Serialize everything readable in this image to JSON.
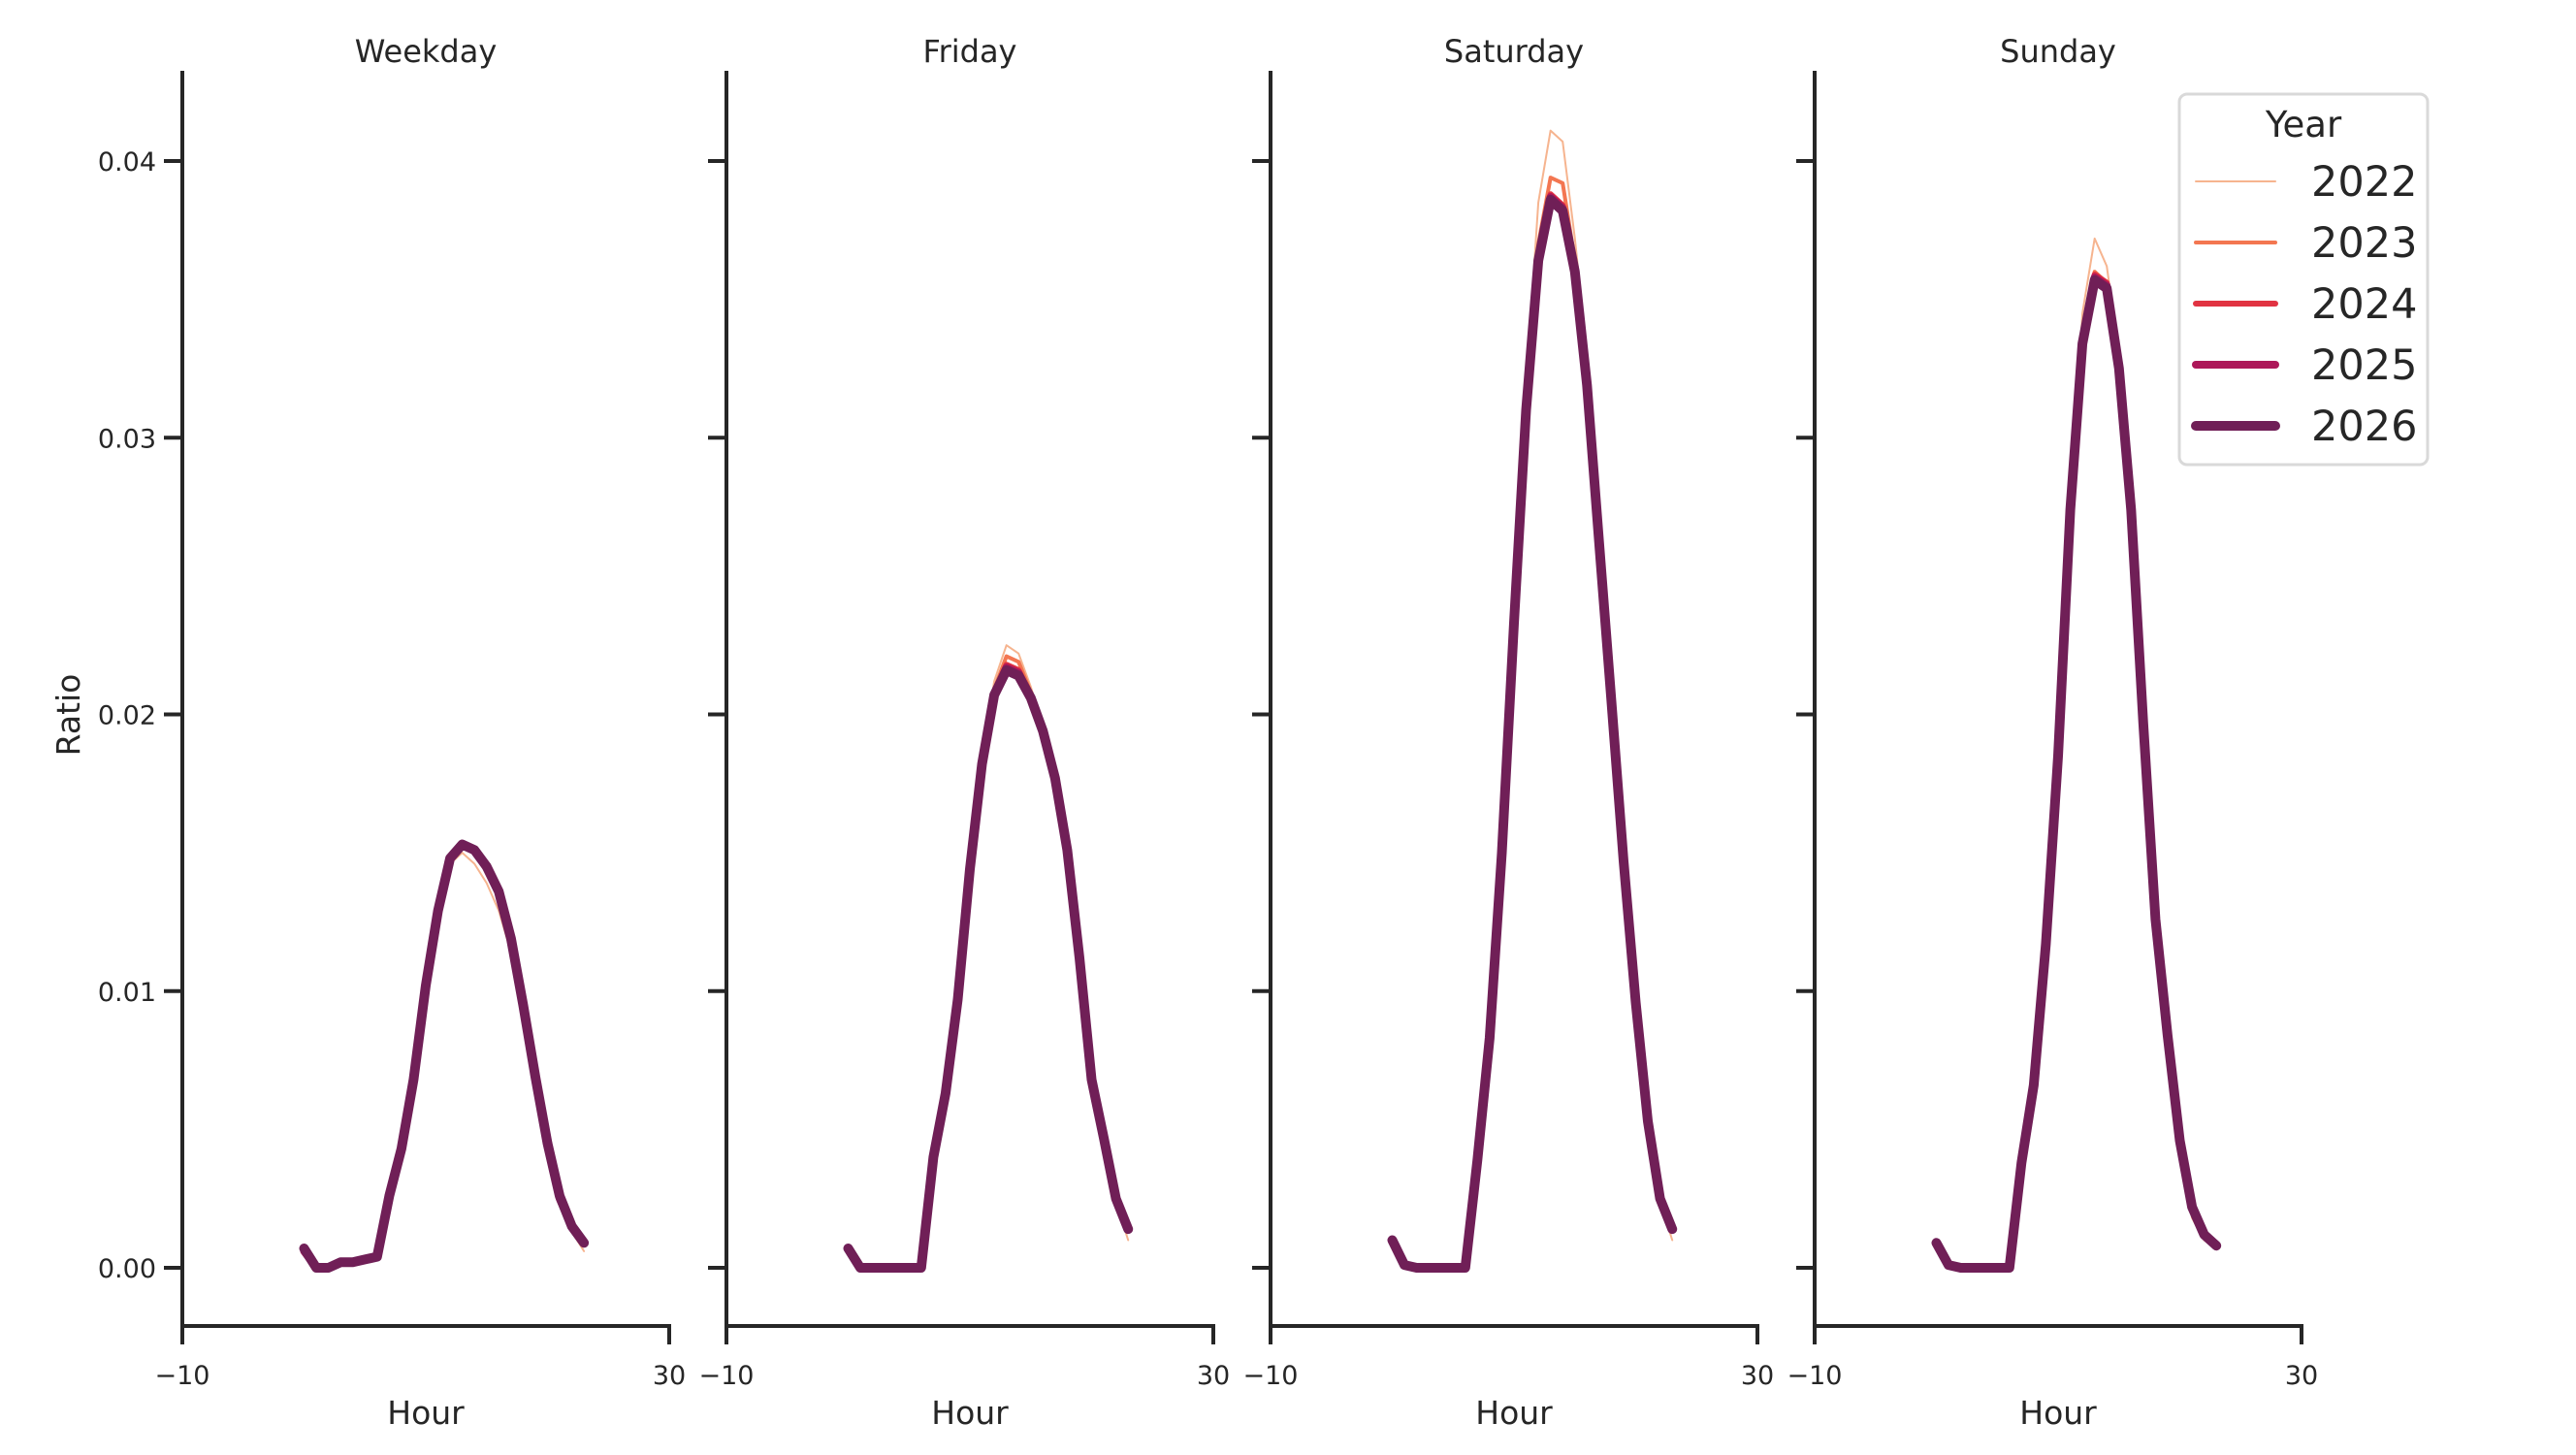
{
  "chart_data": {
    "type": "line",
    "layout": "facet-columns",
    "ylabel": "Ratio",
    "xlabel": "Hour",
    "xlim": [
      -10,
      30
    ],
    "ylim": [
      -0.002,
      0.0432
    ],
    "xticks": [
      -10,
      30
    ],
    "xtick_labels": [
      "−10",
      "30"
    ],
    "yticks": [
      0.0,
      0.01,
      0.02,
      0.03,
      0.04
    ],
    "ytick_labels": [
      "0.00",
      "0.01",
      "0.02",
      "0.03",
      "0.04"
    ],
    "grid": false,
    "legend": {
      "title": "Year",
      "position": "upper right (inside last panel)",
      "entries": [
        {
          "label": "2022",
          "color": "#f6b48f",
          "width": 2
        },
        {
          "label": "2023",
          "color": "#f37651",
          "width": 4
        },
        {
          "label": "2024",
          "color": "#e13342",
          "width": 6
        },
        {
          "label": "2025",
          "color": "#ad1759",
          "width": 8
        },
        {
          "label": "2026",
          "color": "#701f57",
          "width": 10
        }
      ]
    },
    "x": [
      0,
      1,
      2,
      3,
      4,
      5,
      6,
      7,
      8,
      9,
      10,
      11,
      12,
      13,
      14,
      15,
      16,
      17,
      18,
      19,
      20,
      21,
      22,
      23
    ],
    "panels": [
      {
        "title": "Weekday",
        "series": [
          {
            "name": "2022",
            "values": [
              0.0006,
              0,
              0,
              0.0002,
              0.0002,
              0.0003,
              0.0004,
              0.0022,
              0.004,
              0.0067,
              0.0101,
              0.0128,
              0.0146,
              0.015,
              0.0146,
              0.0139,
              0.0129,
              0.0114,
              0.0092,
              0.0068,
              0.0044,
              0.0025,
              0.0013,
              0.0006
            ]
          },
          {
            "name": "2023",
            "values": [
              0.0006,
              0,
              0,
              0.0002,
              0.0002,
              0.0003,
              0.0004,
              0.0025,
              0.0042,
              0.0068,
              0.0102,
              0.0128,
              0.0147,
              0.0152,
              0.015,
              0.0143,
              0.0134,
              0.0118,
              0.0094,
              0.0069,
              0.0044,
              0.0025,
              0.0015,
              0.0008
            ]
          },
          {
            "name": "2024",
            "values": [
              0.0006,
              0,
              0,
              0.0002,
              0.0002,
              0.0003,
              0.0004,
              0.0026,
              0.0043,
              0.0068,
              0.0102,
              0.0129,
              0.0148,
              0.0153,
              0.0151,
              0.0145,
              0.0136,
              0.0119,
              0.0095,
              0.0069,
              0.0044,
              0.0025,
              0.0015,
              0.0009
            ]
          },
          {
            "name": "2025",
            "values": [
              0.0006,
              0,
              0,
              0.0002,
              0.0002,
              0.0003,
              0.0004,
              0.0026,
              0.0043,
              0.0068,
              0.0102,
              0.0129,
              0.0148,
              0.0153,
              0.0151,
              0.0145,
              0.0136,
              0.0119,
              0.0095,
              0.0069,
              0.0044,
              0.0025,
              0.0015,
              0.0009
            ]
          },
          {
            "name": "2026",
            "values": [
              0.0007,
              0,
              0,
              0.0002,
              0.0002,
              0.0003,
              0.0004,
              0.0026,
              0.0043,
              0.0068,
              0.0102,
              0.0129,
              0.0148,
              0.0153,
              0.0151,
              0.0145,
              0.0136,
              0.0119,
              0.0095,
              0.0069,
              0.0045,
              0.0026,
              0.0015,
              0.0009
            ]
          }
        ]
      },
      {
        "title": "Friday",
        "series": [
          {
            "name": "2022",
            "values": [
              0.0007,
              0,
              0,
              0,
              0,
              0,
              0,
              0.0038,
              0.0062,
              0.0097,
              0.0144,
              0.0183,
              0.0212,
              0.0225,
              0.0222,
              0.021,
              0.0196,
              0.0178,
              0.0151,
              0.0112,
              0.0068,
              0.0047,
              0.0024,
              0.001
            ]
          },
          {
            "name": "2023",
            "values": [
              0.0007,
              0,
              0,
              0,
              0,
              0,
              0,
              0.0039,
              0.0062,
              0.0097,
              0.0144,
              0.0182,
              0.0209,
              0.0221,
              0.0219,
              0.0208,
              0.0195,
              0.0177,
              0.0151,
              0.0112,
              0.0068,
              0.0047,
              0.0025,
              0.0013
            ]
          },
          {
            "name": "2024",
            "values": [
              0.0007,
              0,
              0,
              0,
              0,
              0,
              0,
              0.004,
              0.0063,
              0.0097,
              0.0144,
              0.0182,
              0.0208,
              0.0218,
              0.0216,
              0.0207,
              0.0194,
              0.0177,
              0.0151,
              0.0112,
              0.0068,
              0.0047,
              0.0025,
              0.0014
            ]
          },
          {
            "name": "2025",
            "values": [
              0.0007,
              0,
              0,
              0,
              0,
              0,
              0,
              0.004,
              0.0063,
              0.0097,
              0.0144,
              0.0182,
              0.0207,
              0.0217,
              0.0215,
              0.0206,
              0.0194,
              0.0177,
              0.0151,
              0.0112,
              0.0068,
              0.0047,
              0.0025,
              0.0014
            ]
          },
          {
            "name": "2026",
            "values": [
              0.0007,
              0,
              0,
              0,
              0,
              0,
              0,
              0.004,
              0.0063,
              0.0097,
              0.0144,
              0.0182,
              0.0207,
              0.0216,
              0.0214,
              0.0206,
              0.0194,
              0.0177,
              0.0151,
              0.0112,
              0.0068,
              0.0047,
              0.0025,
              0.0014
            ]
          }
        ]
      },
      {
        "title": "Saturday",
        "series": [
          {
            "name": "2022",
            "values": [
              0.001,
              0.0001,
              0,
              0,
              0,
              0,
              0,
              0.0038,
              0.0082,
              0.0149,
              0.0233,
              0.0318,
              0.0385,
              0.0411,
              0.0407,
              0.0372,
              0.033,
              0.027,
              0.021,
              0.015,
              0.0096,
              0.0052,
              0.0024,
              0.001
            ]
          },
          {
            "name": "2023",
            "values": [
              0.001,
              0.0001,
              0,
              0,
              0,
              0,
              0,
              0.0039,
              0.0083,
              0.015,
              0.0233,
              0.0312,
              0.037,
              0.0394,
              0.0392,
              0.0364,
              0.0322,
              0.0265,
              0.0206,
              0.0148,
              0.0096,
              0.0053,
              0.0025,
              0.0013
            ]
          },
          {
            "name": "2024",
            "values": [
              0.001,
              0.0001,
              0,
              0,
              0,
              0,
              0,
              0.0039,
              0.0083,
              0.015,
              0.0233,
              0.0311,
              0.0366,
              0.0388,
              0.0384,
              0.0361,
              0.0319,
              0.0263,
              0.0205,
              0.0147,
              0.0096,
              0.0053,
              0.0025,
              0.0014
            ]
          },
          {
            "name": "2025",
            "values": [
              0.001,
              0.0001,
              0,
              0,
              0,
              0,
              0,
              0.0039,
              0.0083,
              0.015,
              0.0233,
              0.031,
              0.0365,
              0.0387,
              0.0383,
              0.036,
              0.0319,
              0.0262,
              0.0205,
              0.0147,
              0.0096,
              0.0053,
              0.0025,
              0.0014
            ]
          },
          {
            "name": "2026",
            "values": [
              0.001,
              0.0001,
              0,
              0,
              0,
              0,
              0,
              0.0039,
              0.0083,
              0.015,
              0.0233,
              0.031,
              0.0364,
              0.0386,
              0.0382,
              0.036,
              0.0319,
              0.0262,
              0.0205,
              0.0147,
              0.0096,
              0.0053,
              0.0025,
              0.0014
            ]
          }
        ]
      },
      {
        "title": "Sunday",
        "series": [
          {
            "name": "2022",
            "values": [
              0.0009,
              0.0001,
              0,
              0,
              0,
              0,
              0,
              0.0037,
              0.0066,
              0.0117,
              0.0185,
              0.0277,
              0.0345,
              0.0372,
              0.0362,
              0.033,
              0.0275,
              0.0194,
              0.0121,
              0.008,
              0.004,
              0.0018,
              0.001,
              0.0007
            ]
          },
          {
            "name": "2023",
            "values": [
              0.0009,
              0.0001,
              0,
              0,
              0,
              0,
              0,
              0.0038,
              0.0066,
              0.0117,
              0.0185,
              0.0275,
              0.0336,
              0.036,
              0.0356,
              0.0327,
              0.0274,
              0.0196,
              0.0124,
              0.0082,
              0.0043,
              0.002,
              0.0011,
              0.0008
            ]
          },
          {
            "name": "2024",
            "values": [
              0.0009,
              0.0001,
              0,
              0,
              0,
              0,
              0,
              0.0038,
              0.0066,
              0.0117,
              0.0185,
              0.0274,
              0.0334,
              0.0359,
              0.0356,
              0.0326,
              0.0274,
              0.0197,
              0.0126,
              0.0084,
              0.0045,
              0.0022,
              0.0012,
              0.0008
            ]
          },
          {
            "name": "2025",
            "values": [
              0.0009,
              0.0001,
              0,
              0,
              0,
              0,
              0,
              0.0038,
              0.0066,
              0.0117,
              0.0185,
              0.0274,
              0.0334,
              0.0358,
              0.0355,
              0.0325,
              0.0274,
              0.0197,
              0.0126,
              0.0084,
              0.0046,
              0.0022,
              0.0012,
              0.0008
            ]
          },
          {
            "name": "2026",
            "values": [
              0.0009,
              0.0001,
              0,
              0,
              0,
              0,
              0,
              0.0038,
              0.0066,
              0.0117,
              0.0185,
              0.0274,
              0.0334,
              0.0357,
              0.0354,
              0.0325,
              0.0274,
              0.0197,
              0.0126,
              0.0084,
              0.0046,
              0.0022,
              0.0012,
              0.0008
            ]
          }
        ]
      }
    ]
  }
}
